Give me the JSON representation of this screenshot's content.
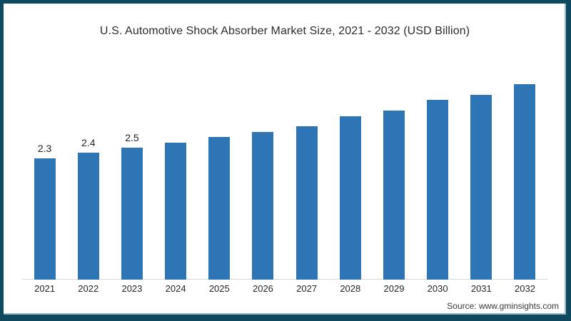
{
  "page": {
    "source": "Source: www.gminsights.com"
  },
  "colors": {
    "bar": "#2e75b6",
    "frame_border": "#0e4a5f",
    "axis_line": "#d9d9d9"
  },
  "chart_data": {
    "type": "bar",
    "title": "U.S. Automotive Shock Absorber Market Size, 2021 - 2032 (USD Billion)",
    "categories": [
      "2021",
      "2022",
      "2023",
      "2024",
      "2025",
      "2026",
      "2027",
      "2028",
      "2029",
      "2030",
      "2031",
      "2032"
    ],
    "values": [
      2.3,
      2.4,
      2.5,
      2.6,
      2.7,
      2.8,
      2.9,
      3.1,
      3.2,
      3.4,
      3.5,
      3.7
    ],
    "value_labels_visible": [
      "2.3",
      "2.4",
      "2.5",
      null,
      null,
      null,
      null,
      null,
      null,
      null,
      null,
      null
    ],
    "unit": "USD Billion",
    "xlabel": "",
    "ylabel": "",
    "ylim": [
      0,
      4
    ],
    "grid": false,
    "legend": "none",
    "bar_color": "#2e75b6"
  }
}
